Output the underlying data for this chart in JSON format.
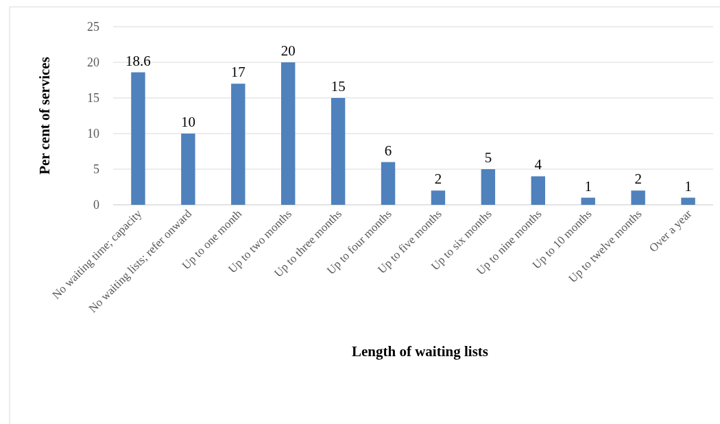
{
  "chart_data": {
    "type": "bar",
    "xlabel": "Length of waiting lists",
    "ylabel": "Per cent of services",
    "categories": [
      "No waiting time; capacity",
      "No waiting lists; refer onward",
      "Up to one month",
      "Up to two months",
      "Up to three months",
      "Up to four months",
      "Up to five months",
      "Up to six months",
      "Up to nine months",
      "Up to 10 months",
      "Up to twelve months",
      "Over a year"
    ],
    "values": [
      18.6,
      10,
      17,
      20,
      15,
      6,
      2,
      5,
      4,
      1,
      2,
      1
    ],
    "color": "#4f81bd",
    "ylim": [
      0,
      25
    ],
    "yticks": [
      0,
      5,
      10,
      15,
      20,
      25
    ],
    "grid": "y",
    "data_labels": true
  }
}
